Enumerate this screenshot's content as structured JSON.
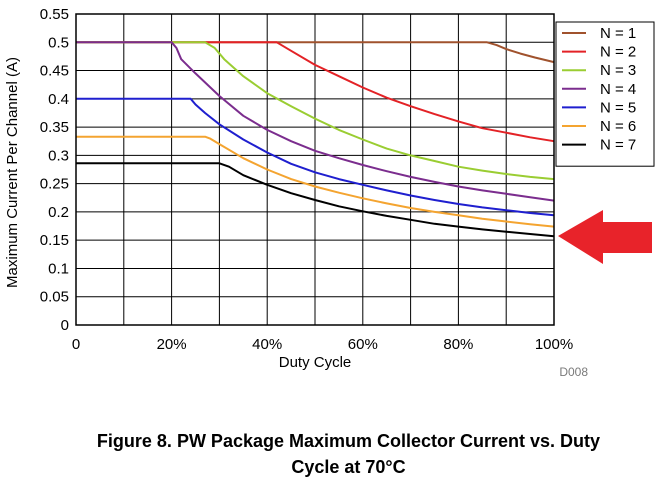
{
  "caption": {
    "line1": "Figure 8. PW Package Maximum Collector Current vs. Duty",
    "line2": "Cycle at 70°C"
  },
  "figure_code": "D008",
  "annotation": {
    "arrow_color": "#e8232a",
    "arrow_icon": "arrow-left-icon"
  },
  "chart_data": {
    "type": "line",
    "title": "",
    "xlabel": "Duty Cycle",
    "ylabel": "Maximum Current Per Channel (A)",
    "xlim": [
      0,
      100
    ],
    "ylim": [
      0,
      0.55
    ],
    "grid": true,
    "legend_position": "top-right",
    "x_ticks": [
      {
        "value": 0,
        "label": "0"
      },
      {
        "value": 10,
        "label": ""
      },
      {
        "value": 20,
        "label": "20%"
      },
      {
        "value": 30,
        "label": ""
      },
      {
        "value": 40,
        "label": "40%"
      },
      {
        "value": 50,
        "label": ""
      },
      {
        "value": 60,
        "label": "60%"
      },
      {
        "value": 70,
        "label": ""
      },
      {
        "value": 80,
        "label": "80%"
      },
      {
        "value": 90,
        "label": ""
      },
      {
        "value": 100,
        "label": "100%"
      }
    ],
    "y_ticks": [
      {
        "value": 0,
        "label": "0"
      },
      {
        "value": 0.05,
        "label": "0.05"
      },
      {
        "value": 0.1,
        "label": "0.1"
      },
      {
        "value": 0.15,
        "label": "0.15"
      },
      {
        "value": 0.2,
        "label": "0.2"
      },
      {
        "value": 0.25,
        "label": "0.25"
      },
      {
        "value": 0.3,
        "label": "0.3"
      },
      {
        "value": 0.35,
        "label": "0.35"
      },
      {
        "value": 0.4,
        "label": "0.4"
      },
      {
        "value": 0.45,
        "label": "0.45"
      },
      {
        "value": 0.5,
        "label": "0.5"
      },
      {
        "value": 0.55,
        "label": "0.55"
      }
    ],
    "series": [
      {
        "name": "N = 1",
        "color": "#a0522d",
        "points": [
          [
            0,
            0.5
          ],
          [
            86,
            0.5
          ],
          [
            88,
            0.495
          ],
          [
            90,
            0.488
          ],
          [
            93,
            0.48
          ],
          [
            96,
            0.473
          ],
          [
            100,
            0.465
          ]
        ]
      },
      {
        "name": "N = 2",
        "color": "#e32226",
        "points": [
          [
            0,
            0.5
          ],
          [
            42,
            0.5
          ],
          [
            45,
            0.485
          ],
          [
            50,
            0.46
          ],
          [
            55,
            0.44
          ],
          [
            60,
            0.42
          ],
          [
            65,
            0.402
          ],
          [
            70,
            0.387
          ],
          [
            75,
            0.373
          ],
          [
            80,
            0.36
          ],
          [
            85,
            0.348
          ],
          [
            90,
            0.34
          ],
          [
            95,
            0.332
          ],
          [
            100,
            0.325
          ]
        ]
      },
      {
        "name": "N = 3",
        "color": "#9acd32",
        "points": [
          [
            0,
            0.5
          ],
          [
            27,
            0.5
          ],
          [
            29,
            0.49
          ],
          [
            31,
            0.47
          ],
          [
            35,
            0.44
          ],
          [
            40,
            0.41
          ],
          [
            45,
            0.387
          ],
          [
            50,
            0.365
          ],
          [
            55,
            0.345
          ],
          [
            60,
            0.328
          ],
          [
            65,
            0.312
          ],
          [
            70,
            0.3
          ],
          [
            75,
            0.29
          ],
          [
            80,
            0.28
          ],
          [
            85,
            0.273
          ],
          [
            90,
            0.267
          ],
          [
            95,
            0.262
          ],
          [
            100,
            0.258
          ]
        ]
      },
      {
        "name": "N = 4",
        "color": "#7b2d8e",
        "points": [
          [
            0,
            0.5
          ],
          [
            20,
            0.5
          ],
          [
            21,
            0.49
          ],
          [
            22,
            0.47
          ],
          [
            25,
            0.445
          ],
          [
            30,
            0.405
          ],
          [
            35,
            0.37
          ],
          [
            40,
            0.345
          ],
          [
            45,
            0.325
          ],
          [
            50,
            0.308
          ],
          [
            55,
            0.295
          ],
          [
            60,
            0.283
          ],
          [
            65,
            0.272
          ],
          [
            70,
            0.262
          ],
          [
            75,
            0.253
          ],
          [
            80,
            0.245
          ],
          [
            85,
            0.238
          ],
          [
            90,
            0.232
          ],
          [
            95,
            0.226
          ],
          [
            100,
            0.22
          ]
        ]
      },
      {
        "name": "N = 5",
        "color": "#1f1fcf",
        "points": [
          [
            0,
            0.4
          ],
          [
            24,
            0.4
          ],
          [
            25,
            0.39
          ],
          [
            27,
            0.375
          ],
          [
            30,
            0.355
          ],
          [
            35,
            0.328
          ],
          [
            40,
            0.305
          ],
          [
            45,
            0.285
          ],
          [
            50,
            0.27
          ],
          [
            55,
            0.258
          ],
          [
            60,
            0.248
          ],
          [
            65,
            0.238
          ],
          [
            70,
            0.229
          ],
          [
            75,
            0.221
          ],
          [
            80,
            0.214
          ],
          [
            85,
            0.208
          ],
          [
            90,
            0.203
          ],
          [
            95,
            0.198
          ],
          [
            100,
            0.194
          ]
        ]
      },
      {
        "name": "N = 6",
        "color": "#f4a430",
        "points": [
          [
            0,
            0.333
          ],
          [
            27,
            0.333
          ],
          [
            28,
            0.33
          ],
          [
            30,
            0.32
          ],
          [
            35,
            0.295
          ],
          [
            40,
            0.275
          ],
          [
            45,
            0.258
          ],
          [
            50,
            0.245
          ],
          [
            55,
            0.234
          ],
          [
            60,
            0.224
          ],
          [
            65,
            0.215
          ],
          [
            70,
            0.207
          ],
          [
            75,
            0.2
          ],
          [
            80,
            0.194
          ],
          [
            85,
            0.188
          ],
          [
            90,
            0.183
          ],
          [
            95,
            0.178
          ],
          [
            100,
            0.174
          ]
        ]
      },
      {
        "name": "N = 7",
        "color": "#000000",
        "points": [
          [
            0,
            0.286
          ],
          [
            30,
            0.286
          ],
          [
            32,
            0.28
          ],
          [
            35,
            0.265
          ],
          [
            40,
            0.248
          ],
          [
            45,
            0.233
          ],
          [
            50,
            0.221
          ],
          [
            55,
            0.21
          ],
          [
            60,
            0.201
          ],
          [
            65,
            0.193
          ],
          [
            70,
            0.186
          ],
          [
            75,
            0.179
          ],
          [
            80,
            0.174
          ],
          [
            85,
            0.169
          ],
          [
            90,
            0.165
          ],
          [
            95,
            0.161
          ],
          [
            100,
            0.157
          ]
        ]
      }
    ]
  }
}
